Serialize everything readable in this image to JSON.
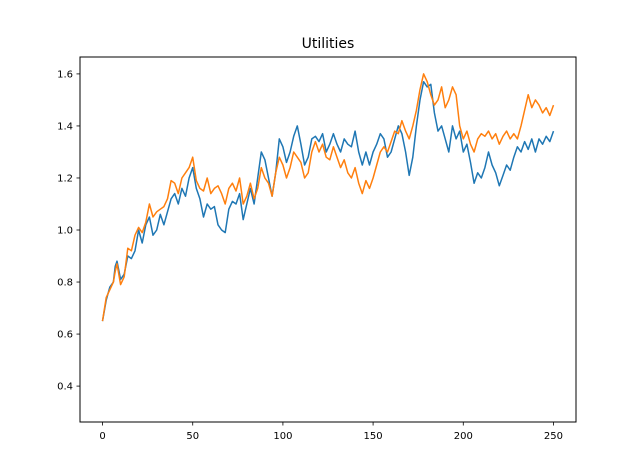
{
  "chart_data": {
    "type": "line",
    "title": "Utilities",
    "xlabel": "",
    "ylabel": "",
    "xlim": [
      -12.5,
      262.5
    ],
    "ylim": [
      0.262,
      1.665
    ],
    "grid": false,
    "x_ticks": [
      0,
      50,
      100,
      150,
      200,
      250
    ],
    "y_ticks": [
      0.4,
      0.6,
      0.8,
      1.0,
      1.2,
      1.4,
      1.6
    ],
    "y_tick_labels": [
      "0.4",
      "0.6",
      "0.8",
      "1.0",
      "1.2",
      "1.4",
      "1.6"
    ],
    "series": [
      {
        "color": "#1f77b4",
        "points": [
          [
            0,
            0.65
          ],
          [
            2,
            0.73
          ],
          [
            4,
            0.78
          ],
          [
            6,
            0.8
          ],
          [
            7,
            0.86
          ],
          [
            8,
            0.88
          ],
          [
            10,
            0.81
          ],
          [
            12,
            0.83
          ],
          [
            14,
            0.9
          ],
          [
            16,
            0.89
          ],
          [
            18,
            0.92
          ],
          [
            20,
            1.0
          ],
          [
            22,
            0.95
          ],
          [
            24,
            1.02
          ],
          [
            26,
            1.05
          ],
          [
            28,
            0.98
          ],
          [
            30,
            1.0
          ],
          [
            32,
            1.06
          ],
          [
            34,
            1.02
          ],
          [
            36,
            1.07
          ],
          [
            38,
            1.12
          ],
          [
            40,
            1.14
          ],
          [
            42,
            1.1
          ],
          [
            44,
            1.16
          ],
          [
            46,
            1.13
          ],
          [
            48,
            1.2
          ],
          [
            50,
            1.24
          ],
          [
            52,
            1.16
          ],
          [
            54,
            1.12
          ],
          [
            56,
            1.05
          ],
          [
            58,
            1.1
          ],
          [
            60,
            1.08
          ],
          [
            62,
            1.09
          ],
          [
            64,
            1.02
          ],
          [
            66,
            1.0
          ],
          [
            68,
            0.99
          ],
          [
            70,
            1.08
          ],
          [
            72,
            1.11
          ],
          [
            74,
            1.1
          ],
          [
            76,
            1.14
          ],
          [
            78,
            1.04
          ],
          [
            80,
            1.1
          ],
          [
            82,
            1.16
          ],
          [
            84,
            1.1
          ],
          [
            86,
            1.2
          ],
          [
            88,
            1.3
          ],
          [
            90,
            1.27
          ],
          [
            92,
            1.2
          ],
          [
            94,
            1.13
          ],
          [
            96,
            1.22
          ],
          [
            98,
            1.35
          ],
          [
            100,
            1.32
          ],
          [
            102,
            1.26
          ],
          [
            104,
            1.3
          ],
          [
            106,
            1.36
          ],
          [
            108,
            1.4
          ],
          [
            110,
            1.33
          ],
          [
            112,
            1.25
          ],
          [
            114,
            1.28
          ],
          [
            116,
            1.35
          ],
          [
            118,
            1.36
          ],
          [
            120,
            1.34
          ],
          [
            122,
            1.37
          ],
          [
            124,
            1.3
          ],
          [
            126,
            1.33
          ],
          [
            128,
            1.37
          ],
          [
            130,
            1.33
          ],
          [
            132,
            1.3
          ],
          [
            134,
            1.35
          ],
          [
            136,
            1.33
          ],
          [
            138,
            1.32
          ],
          [
            140,
            1.38
          ],
          [
            142,
            1.3
          ],
          [
            144,
            1.25
          ],
          [
            146,
            1.3
          ],
          [
            148,
            1.25
          ],
          [
            150,
            1.3
          ],
          [
            152,
            1.33
          ],
          [
            154,
            1.37
          ],
          [
            156,
            1.35
          ],
          [
            158,
            1.28
          ],
          [
            160,
            1.3
          ],
          [
            162,
            1.35
          ],
          [
            164,
            1.4
          ],
          [
            166,
            1.37
          ],
          [
            168,
            1.3
          ],
          [
            170,
            1.21
          ],
          [
            172,
            1.28
          ],
          [
            174,
            1.4
          ],
          [
            176,
            1.5
          ],
          [
            178,
            1.57
          ],
          [
            180,
            1.55
          ],
          [
            182,
            1.56
          ],
          [
            184,
            1.45
          ],
          [
            186,
            1.38
          ],
          [
            188,
            1.4
          ],
          [
            190,
            1.35
          ],
          [
            192,
            1.3
          ],
          [
            194,
            1.4
          ],
          [
            196,
            1.35
          ],
          [
            198,
            1.38
          ],
          [
            200,
            1.3
          ],
          [
            202,
            1.33
          ],
          [
            204,
            1.26
          ],
          [
            206,
            1.18
          ],
          [
            208,
            1.22
          ],
          [
            210,
            1.2
          ],
          [
            212,
            1.24
          ],
          [
            214,
            1.3
          ],
          [
            216,
            1.25
          ],
          [
            218,
            1.22
          ],
          [
            220,
            1.17
          ],
          [
            222,
            1.21
          ],
          [
            224,
            1.25
          ],
          [
            226,
            1.23
          ],
          [
            228,
            1.28
          ],
          [
            230,
            1.32
          ],
          [
            232,
            1.3
          ],
          [
            234,
            1.34
          ],
          [
            236,
            1.31
          ],
          [
            238,
            1.35
          ],
          [
            240,
            1.3
          ],
          [
            242,
            1.35
          ],
          [
            244,
            1.33
          ],
          [
            246,
            1.36
          ],
          [
            248,
            1.34
          ],
          [
            250,
            1.38
          ]
        ]
      },
      {
        "color": "#ff7f0e",
        "points": [
          [
            0,
            0.65
          ],
          [
            2,
            0.74
          ],
          [
            4,
            0.77
          ],
          [
            6,
            0.8
          ],
          [
            7,
            0.84
          ],
          [
            8,
            0.87
          ],
          [
            10,
            0.79
          ],
          [
            12,
            0.82
          ],
          [
            14,
            0.93
          ],
          [
            16,
            0.92
          ],
          [
            18,
            0.98
          ],
          [
            20,
            1.01
          ],
          [
            22,
            0.99
          ],
          [
            24,
            1.03
          ],
          [
            26,
            1.1
          ],
          [
            28,
            1.05
          ],
          [
            30,
            1.07
          ],
          [
            32,
            1.08
          ],
          [
            34,
            1.09
          ],
          [
            36,
            1.12
          ],
          [
            38,
            1.19
          ],
          [
            40,
            1.18
          ],
          [
            42,
            1.14
          ],
          [
            44,
            1.2
          ],
          [
            46,
            1.22
          ],
          [
            48,
            1.24
          ],
          [
            50,
            1.28
          ],
          [
            52,
            1.19
          ],
          [
            54,
            1.16
          ],
          [
            56,
            1.15
          ],
          [
            58,
            1.2
          ],
          [
            60,
            1.14
          ],
          [
            62,
            1.16
          ],
          [
            64,
            1.17
          ],
          [
            66,
            1.14
          ],
          [
            68,
            1.1
          ],
          [
            70,
            1.16
          ],
          [
            72,
            1.18
          ],
          [
            74,
            1.15
          ],
          [
            76,
            1.2
          ],
          [
            78,
            1.1
          ],
          [
            80,
            1.13
          ],
          [
            82,
            1.18
          ],
          [
            84,
            1.12
          ],
          [
            86,
            1.16
          ],
          [
            88,
            1.24
          ],
          [
            90,
            1.2
          ],
          [
            92,
            1.18
          ],
          [
            94,
            1.13
          ],
          [
            96,
            1.22
          ],
          [
            98,
            1.28
          ],
          [
            100,
            1.25
          ],
          [
            102,
            1.2
          ],
          [
            104,
            1.24
          ],
          [
            106,
            1.3
          ],
          [
            108,
            1.28
          ],
          [
            110,
            1.26
          ],
          [
            112,
            1.2
          ],
          [
            114,
            1.22
          ],
          [
            116,
            1.3
          ],
          [
            118,
            1.34
          ],
          [
            120,
            1.3
          ],
          [
            122,
            1.33
          ],
          [
            124,
            1.28
          ],
          [
            126,
            1.27
          ],
          [
            128,
            1.32
          ],
          [
            130,
            1.28
          ],
          [
            132,
            1.24
          ],
          [
            134,
            1.27
          ],
          [
            136,
            1.22
          ],
          [
            138,
            1.2
          ],
          [
            140,
            1.24
          ],
          [
            142,
            1.18
          ],
          [
            144,
            1.14
          ],
          [
            146,
            1.19
          ],
          [
            148,
            1.16
          ],
          [
            150,
            1.2
          ],
          [
            152,
            1.25
          ],
          [
            154,
            1.3
          ],
          [
            156,
            1.32
          ],
          [
            158,
            1.3
          ],
          [
            160,
            1.34
          ],
          [
            162,
            1.38
          ],
          [
            164,
            1.37
          ],
          [
            166,
            1.42
          ],
          [
            168,
            1.38
          ],
          [
            170,
            1.35
          ],
          [
            172,
            1.4
          ],
          [
            174,
            1.46
          ],
          [
            176,
            1.54
          ],
          [
            178,
            1.6
          ],
          [
            180,
            1.57
          ],
          [
            182,
            1.52
          ],
          [
            184,
            1.48
          ],
          [
            186,
            1.5
          ],
          [
            188,
            1.55
          ],
          [
            190,
            1.47
          ],
          [
            192,
            1.5
          ],
          [
            194,
            1.55
          ],
          [
            196,
            1.52
          ],
          [
            198,
            1.4
          ],
          [
            200,
            1.35
          ],
          [
            202,
            1.38
          ],
          [
            204,
            1.33
          ],
          [
            206,
            1.3
          ],
          [
            208,
            1.35
          ],
          [
            210,
            1.37
          ],
          [
            212,
            1.36
          ],
          [
            214,
            1.38
          ],
          [
            216,
            1.35
          ],
          [
            218,
            1.37
          ],
          [
            220,
            1.33
          ],
          [
            222,
            1.36
          ],
          [
            224,
            1.38
          ],
          [
            226,
            1.35
          ],
          [
            228,
            1.37
          ],
          [
            230,
            1.35
          ],
          [
            232,
            1.4
          ],
          [
            234,
            1.46
          ],
          [
            236,
            1.52
          ],
          [
            238,
            1.47
          ],
          [
            240,
            1.5
          ],
          [
            242,
            1.48
          ],
          [
            244,
            1.45
          ],
          [
            246,
            1.47
          ],
          [
            248,
            1.44
          ],
          [
            250,
            1.48
          ]
        ]
      }
    ]
  }
}
